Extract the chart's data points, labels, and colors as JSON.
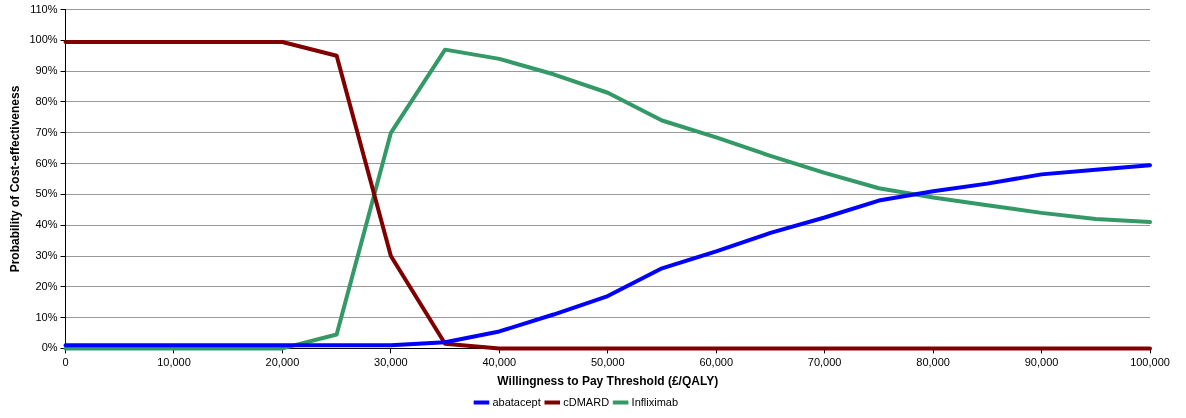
{
  "chart_data": {
    "type": "line",
    "xlabel": "Willingness to Pay Threshold (£/QALY)",
    "ylabel": "Probability of Cost-effectiveness",
    "x": [
      0,
      5000,
      10000,
      15000,
      20000,
      25000,
      30000,
      35000,
      40000,
      45000,
      50000,
      55000,
      60000,
      65000,
      70000,
      75000,
      80000,
      85000,
      90000,
      95000,
      100000
    ],
    "series": [
      {
        "name": "abatacept",
        "color": "#0000ff",
        "values": [
          1,
          1,
          1,
          1,
          1,
          1,
          1,
          2,
          5.5,
          11,
          17,
          26,
          31.5,
          37.5,
          42.5,
          48,
          51,
          53.5,
          56.5,
          58,
          59.5
        ]
      },
      {
        "name": "cDMARD",
        "color": "#800000",
        "values": [
          99.5,
          99.5,
          99.5,
          99.5,
          99.5,
          95,
          30,
          1.5,
          0,
          0,
          0,
          0,
          0,
          0,
          0,
          0,
          0,
          0,
          0,
          0,
          0
        ]
      },
      {
        "name": "Infliximab",
        "color": "#339966",
        "values": [
          0,
          0,
          0,
          0,
          0,
          4.5,
          70,
          97,
          94,
          89,
          83,
          74,
          68.5,
          62.5,
          57,
          52,
          49,
          46.5,
          44,
          42,
          41
        ]
      }
    ],
    "xlim": [
      0,
      100000
    ],
    "xticks": [
      {
        "value": 0,
        "label": "0"
      },
      {
        "value": 10000,
        "label": "10,000"
      },
      {
        "value": 20000,
        "label": "20,000"
      },
      {
        "value": 30000,
        "label": "30,000"
      },
      {
        "value": 40000,
        "label": "40,000"
      },
      {
        "value": 50000,
        "label": "50,000"
      },
      {
        "value": 60000,
        "label": "60,000"
      },
      {
        "value": 70000,
        "label": "70,000"
      },
      {
        "value": 80000,
        "label": "80,000"
      },
      {
        "value": 90000,
        "label": "90,000"
      },
      {
        "value": 100000,
        "label": "100,000"
      }
    ],
    "ylim": [
      0,
      110
    ],
    "yticks": [
      {
        "value": 0,
        "label": "0%"
      },
      {
        "value": 10,
        "label": "10%"
      },
      {
        "value": 20,
        "label": "20%"
      },
      {
        "value": 30,
        "label": "30%"
      },
      {
        "value": 40,
        "label": "40%"
      },
      {
        "value": 50,
        "label": "50%"
      },
      {
        "value": 60,
        "label": "60%"
      },
      {
        "value": 70,
        "label": "70%"
      },
      {
        "value": 80,
        "label": "80%"
      },
      {
        "value": 90,
        "label": "90%"
      },
      {
        "value": 100,
        "label": "100%"
      },
      {
        "value": 110,
        "label": "110%"
      }
    ],
    "grid": "y",
    "legend": "bottom",
    "marker": "none",
    "line_style": "solid"
  }
}
